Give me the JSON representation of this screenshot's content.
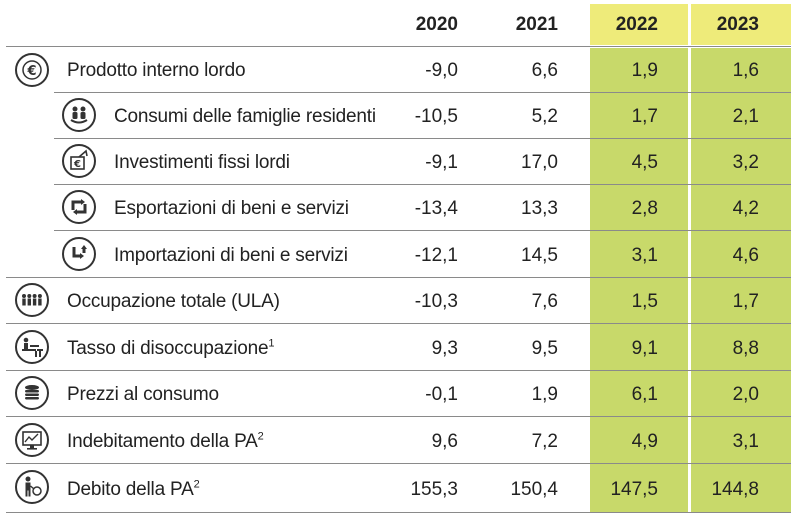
{
  "header": {
    "years": [
      "2020",
      "2021",
      "2022",
      "2023"
    ]
  },
  "colors": {
    "highlight": "#c8d96a",
    "highlight_header": "#eeeb7a",
    "rule": "#8a8a8a"
  },
  "rows": [
    {
      "label": "Prodotto interno lordo",
      "sup": "",
      "icon": "euro-icon",
      "values": [
        "-9,0",
        "6,6",
        "1,9",
        "1,6"
      ]
    },
    {
      "label": "Consumi delle famiglie residenti",
      "sup": "",
      "icon": "family-icon",
      "values": [
        "-10,5",
        "5,2",
        "1,7",
        "2,1"
      ]
    },
    {
      "label": "Investimenti fissi lordi",
      "sup": "",
      "icon": "investment-icon",
      "values": [
        "-9,1",
        "17,0",
        "4,5",
        "3,2"
      ]
    },
    {
      "label": "Esportazioni di beni e servizi",
      "sup": "",
      "icon": "export-icon",
      "values": [
        "-13,4",
        "13,3",
        "2,8",
        "4,2"
      ]
    },
    {
      "label": "Importazioni di beni e servizi",
      "sup": "",
      "icon": "import-icon",
      "values": [
        "-12,1",
        "14,5",
        "3,1",
        "4,6"
      ]
    },
    {
      "label": "Occupazione totale (ULA)",
      "sup": "",
      "icon": "people-icon",
      "values": [
        "-10,3",
        "7,6",
        "1,5",
        "1,7"
      ]
    },
    {
      "label": "Tasso di disoccupazione",
      "sup": "1",
      "icon": "unemployment-icon",
      "values": [
        "9,3",
        "9,5",
        "9,1",
        "8,8"
      ]
    },
    {
      "label": "Prezzi al consumo",
      "sup": "",
      "icon": "coins-icon",
      "values": [
        "-0,1",
        "1,9",
        "6,1",
        "2,0"
      ]
    },
    {
      "label": "Indebitamento della PA",
      "sup": "2",
      "icon": "monitor-chart-icon",
      "values": [
        "9,6",
        "7,2",
        "4,9",
        "3,1"
      ]
    },
    {
      "label": "Debito della PA",
      "sup": "2",
      "icon": "person-debt-icon",
      "values": [
        "155,3",
        "150,4",
        "147,5",
        "144,8"
      ]
    }
  ]
}
